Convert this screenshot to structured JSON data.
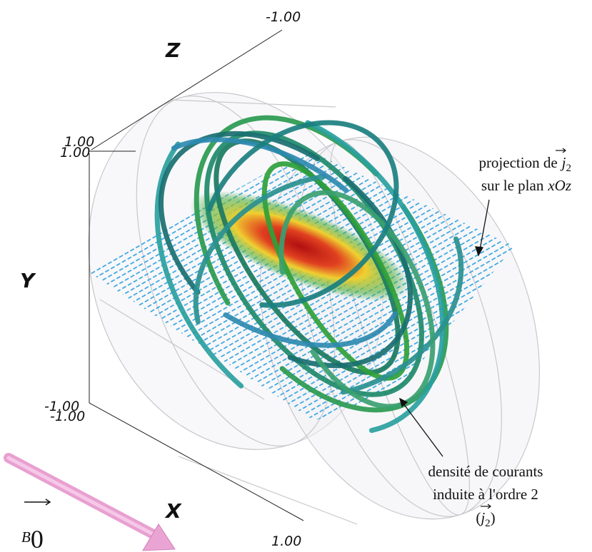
{
  "axes": {
    "x_label": "X",
    "y_label": "Y",
    "z_label": "Z",
    "ticks": {
      "z_top": "-1.00",
      "y_top_a": "1.00",
      "y_top_b": "1.00",
      "y_bottom_a": "-1.00",
      "y_bottom_b": "-1.00",
      "x_end": "1.00"
    }
  },
  "annotations": [
    {
      "text": "projection de",
      "symbol": "j",
      "subscript": "2",
      "line2": "sur le plan",
      "plane": "xOz"
    },
    {
      "line1": "densité de courants",
      "line2": "induite à l'ordre 2",
      "open": "(",
      "symbol": "j",
      "subscript": "2",
      "close": ")"
    }
  ],
  "field": {
    "symbol": "B",
    "subscript": "0"
  }
}
